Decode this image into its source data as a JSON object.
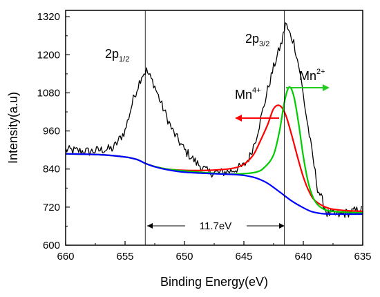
{
  "chart_data": {
    "type": "line",
    "title": "",
    "xlabel": "Binding Energy(eV)",
    "ylabel": "Intensity(a.u)",
    "xlim": [
      660,
      635
    ],
    "ylim": [
      600,
      1340
    ],
    "x_ticks": [
      660,
      655,
      650,
      645,
      640,
      635
    ],
    "y_ticks": [
      600,
      720,
      840,
      960,
      1080,
      1200,
      1320
    ],
    "series": [
      {
        "name": "",
        "color": "#000000",
        "style": "noisy",
        "x": [
          660,
          658,
          656,
          655,
          654.3,
          653.6,
          653.2,
          652.6,
          652,
          651,
          650,
          649,
          648,
          647,
          646,
          645,
          644.5,
          644,
          643.5,
          643,
          642.5,
          642,
          641.8,
          641.5,
          641.2,
          640.8,
          640.3,
          639.8,
          639.3,
          638.8,
          638,
          637,
          636,
          635
        ],
        "y": [
          900,
          895,
          905,
          960,
          1060,
          1135,
          1150,
          1110,
          1050,
          960,
          900,
          860,
          830,
          828,
          835,
          850,
          880,
          935,
          1010,
          1090,
          1160,
          1220,
          1240,
          1300,
          1270,
          1240,
          1150,
          1020,
          900,
          780,
          700,
          695,
          705,
          712
        ]
      },
      {
        "name": "Mn4+",
        "color": "#ff0000",
        "x": [
          660,
          657,
          655,
          654,
          653.3,
          652.5,
          651.5,
          650,
          648,
          646,
          645,
          644.2,
          643.6,
          643,
          642.5,
          642,
          641.5,
          641,
          640.5,
          640,
          639.5,
          639,
          638,
          637,
          636,
          635
        ],
        "y": [
          888,
          885,
          878,
          870,
          858,
          848,
          840,
          836,
          836,
          842,
          855,
          885,
          930,
          980,
          1030,
          1040,
          1012,
          950,
          880,
          815,
          768,
          740,
          718,
          711,
          708,
          707
        ],
        "annotation_arrow": "left"
      },
      {
        "name": "Mn2+",
        "color": "#00cc00",
        "x": [
          660,
          657,
          655,
          654,
          653.3,
          652.5,
          651.5,
          650,
          648,
          646,
          644,
          643.2,
          642.5,
          642,
          641.6,
          641.2,
          640.8,
          640.4,
          640,
          639.6,
          639.2,
          638.8,
          638.3,
          637.8,
          637,
          636,
          635
        ],
        "y": [
          888,
          885,
          878,
          870,
          858,
          848,
          840,
          834,
          828,
          824,
          830,
          848,
          885,
          960,
          1050,
          1098,
          1070,
          985,
          880,
          800,
          752,
          728,
          714,
          708,
          705,
          703,
          702
        ],
        "annotation_arrow": "right"
      },
      {
        "name": "",
        "color": "#0000ff",
        "x": [
          660,
          657,
          655,
          654,
          653.3,
          652.5,
          651.5,
          650,
          648,
          646,
          645,
          644,
          643,
          642,
          641,
          640,
          639.3,
          638.5,
          637.5,
          636.5,
          635
        ],
        "y": [
          888,
          885,
          878,
          870,
          858,
          847,
          838,
          830,
          826,
          823,
          820,
          812,
          795,
          768,
          740,
          718,
          706,
          700,
          698,
          698,
          698
        ]
      }
    ],
    "vlines": [
      653.3,
      641.6
    ],
    "annotations": {
      "peak1_main": "2p",
      "peak1_sub": "1/2",
      "peak2_main": "2p",
      "peak2_sub": "3/2",
      "mn4_main": "Mn",
      "mn4_sup": "4+",
      "mn2_main": "Mn",
      "mn2_sup": "2+",
      "gap_label": "11.7eV"
    },
    "grid": false,
    "legend": "none"
  }
}
